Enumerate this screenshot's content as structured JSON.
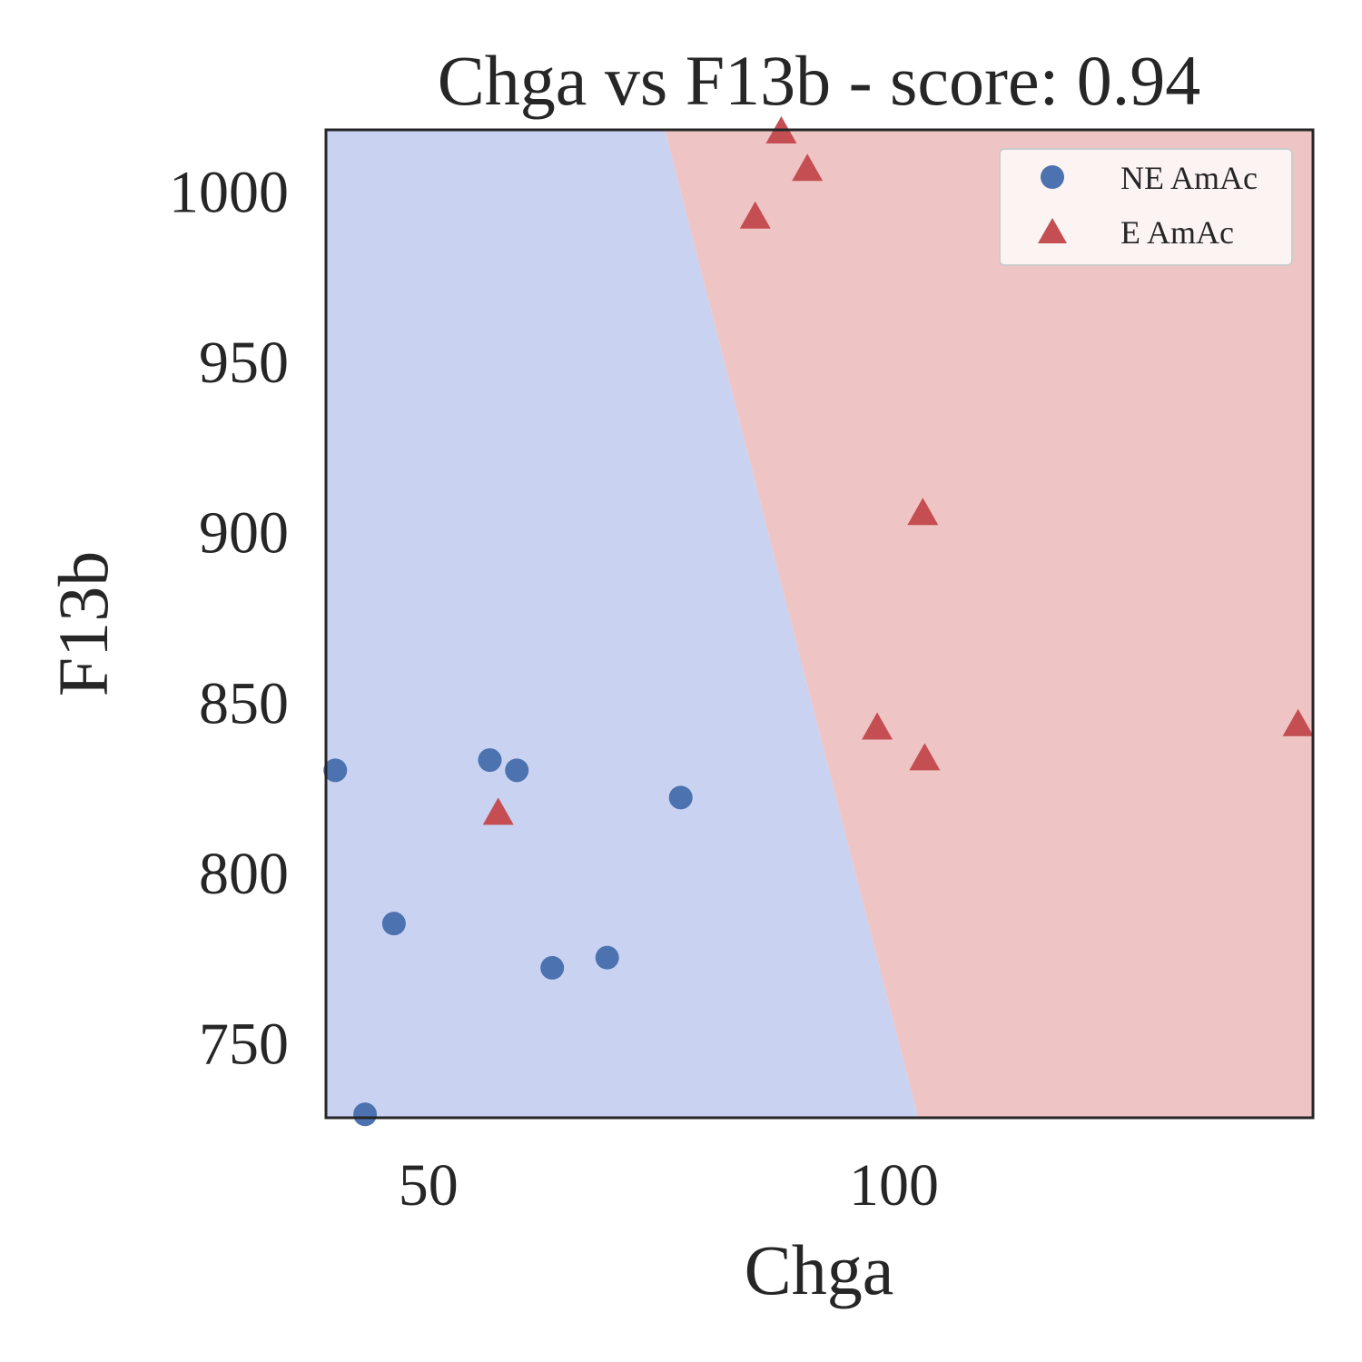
{
  "chart_data": {
    "type": "scatter",
    "title": "Chga vs F13b - score: 0.94",
    "xlabel": "Chga",
    "ylabel": "F13b",
    "xlim": [
      39,
      145
    ],
    "ylim": [
      728,
      1018
    ],
    "xticks": [
      50,
      100
    ],
    "xtick_labels": [
      "50",
      "100"
    ],
    "yticks": [
      750,
      800,
      850,
      900,
      950,
      1000
    ],
    "ytick_labels": [
      "750",
      "800",
      "850",
      "900",
      "950",
      "1000"
    ],
    "grid": false,
    "legend": {
      "position": "top-right",
      "entries": [
        "NE AmAc",
        "E AmAc"
      ]
    },
    "decision_regions": {
      "boundary_line": [
        [
          75.4,
          1018
        ],
        [
          102.6,
          728
        ]
      ],
      "left_region_class": "NE AmAc",
      "right_region_class": "E AmAc",
      "left_color": "#c9d2f1",
      "right_color": "#efc4c4"
    },
    "series": [
      {
        "name": "NE AmAc",
        "marker": "circle",
        "color": "#4c72b0",
        "points": [
          [
            40.0,
            830
          ],
          [
            43.2,
            729
          ],
          [
            46.3,
            785
          ],
          [
            56.6,
            833
          ],
          [
            59.5,
            830
          ],
          [
            63.3,
            772
          ],
          [
            69.2,
            775
          ],
          [
            77.1,
            822
          ]
        ]
      },
      {
        "name": "E AmAc",
        "marker": "triangle",
        "color": "#c44e52",
        "points": [
          [
            57.5,
            818
          ],
          [
            85.1,
            993
          ],
          [
            87.9,
            1018
          ],
          [
            90.7,
            1007
          ],
          [
            98.2,
            843
          ],
          [
            103.1,
            906
          ],
          [
            103.3,
            834
          ],
          [
            143.4,
            844
          ]
        ]
      }
    ]
  }
}
